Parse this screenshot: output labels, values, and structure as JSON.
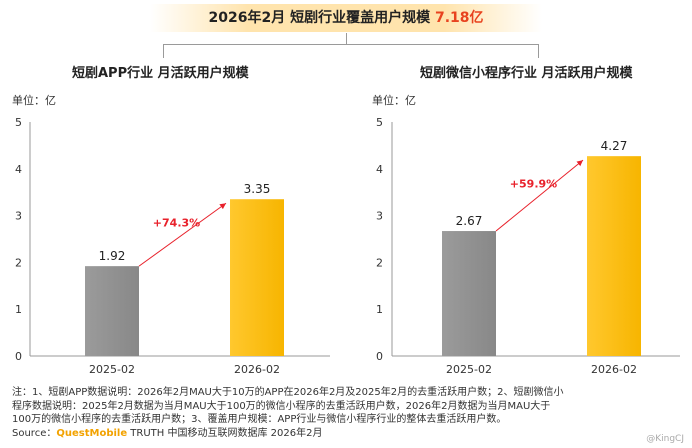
{
  "header": {
    "title_main": "2026年2月 短剧行业覆盖用户规模",
    "title_value": "7.18亿"
  },
  "colors": {
    "bar_prev": "#888888",
    "bar_curr": "#f7b500",
    "growth": "#e8212b",
    "axis": "#666666"
  },
  "panels": [
    {
      "title": "短剧APP行业 月活跃用户规模",
      "unit": "单位：亿"
    },
    {
      "title": "短剧微信小程序行业 月活跃用户规模",
      "unit": "单位：亿"
    }
  ],
  "chart_data": [
    {
      "type": "bar",
      "title": "短剧APP行业 月活跃用户规模",
      "categories": [
        "2025-02",
        "2026-02"
      ],
      "values": [
        1.92,
        3.35
      ],
      "value_labels": [
        "1.92",
        "3.35"
      ],
      "ylim": [
        0,
        5
      ],
      "yticks": [
        "0",
        "1",
        "2",
        "3",
        "4",
        "5"
      ],
      "growth_label": "+74.3%"
    },
    {
      "type": "bar",
      "title": "短剧微信小程序行业 月活跃用户规模",
      "categories": [
        "2025-02",
        "2026-02"
      ],
      "values": [
        2.67,
        4.27
      ],
      "value_labels": [
        "2.67",
        "4.27"
      ],
      "ylim": [
        0,
        5
      ],
      "yticks": [
        "0",
        "1",
        "2",
        "3",
        "4",
        "5"
      ],
      "growth_label": "+59.9%"
    }
  ],
  "notes": [
    "注：1、短剧APP数据说明：2026年2月MAU大于10万的APP在2026年2月及2025年2月的去重活跃用户数；2、短剧微信小",
    "程序数据说明：2025年2月数据为当月MAU大于100万的微信小程序的去重活跃用户数，2026年2月数据为当月MAU大于",
    "100万的微信小程序的去重活跃用户数；3、覆盖用户规模：APP行业与微信小程序行业的整体去重活跃用户数。"
  ],
  "source": {
    "prefix": "Source：",
    "brand": "QuestMobile",
    "rest": " TRUTH 中国移动互联网数据库 2026年2月"
  },
  "watermark": "@KingCJ"
}
